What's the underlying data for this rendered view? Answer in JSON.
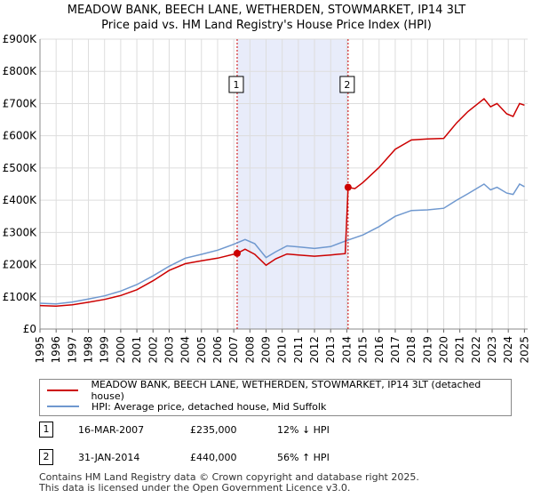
{
  "chart_data": {
    "type": "line",
    "title": "MEADOW BANK, BEECH LANE, WETHERDEN, STOWMARKET, IP14 3LT",
    "subtitle": "Price paid vs. HM Land Registry's House Price Index (HPI)",
    "xlim": [
      1995,
      2025.2
    ],
    "ylim": [
      0,
      900000
    ],
    "x_ticks": [
      "1995",
      "1996",
      "1997",
      "1998",
      "1999",
      "2000",
      "2001",
      "2002",
      "2003",
      "2004",
      "2005",
      "2006",
      "2007",
      "2008",
      "2009",
      "2010",
      "2011",
      "2012",
      "2013",
      "2014",
      "2015",
      "2016",
      "2017",
      "2018",
      "2019",
      "2020",
      "2021",
      "2022",
      "2023",
      "2024",
      "2025"
    ],
    "y_ticks": [
      {
        "value": 0,
        "label": "£0"
      },
      {
        "value": 100000,
        "label": "£100K"
      },
      {
        "value": 200000,
        "label": "£200K"
      },
      {
        "value": 300000,
        "label": "£300K"
      },
      {
        "value": 400000,
        "label": "£400K"
      },
      {
        "value": 500000,
        "label": "£500K"
      },
      {
        "value": 600000,
        "label": "£600K"
      },
      {
        "value": 700000,
        "label": "£700K"
      },
      {
        "value": 800000,
        "label": "£800K"
      },
      {
        "value": 900000,
        "label": "£900K"
      }
    ],
    "grid": true,
    "shaded_span": [
      2007.21,
      2014.08
    ],
    "series": [
      {
        "name": "MEADOW BANK, BEECH LANE, WETHERDEN, STOWMARKET, IP14 3LT (detached house)",
        "color": "#cc0000",
        "points": [
          [
            1995,
            73000
          ],
          [
            1996,
            71000
          ],
          [
            1997,
            75000
          ],
          [
            1998,
            83000
          ],
          [
            1999,
            92000
          ],
          [
            2000,
            104000
          ],
          [
            2001,
            122000
          ],
          [
            2002,
            150000
          ],
          [
            2003,
            182000
          ],
          [
            2004,
            203000
          ],
          [
            2005,
            212000
          ],
          [
            2006,
            220000
          ],
          [
            2007.21,
            235000
          ],
          [
            2007.7,
            248000
          ],
          [
            2008.3,
            232000
          ],
          [
            2009.0,
            198000
          ],
          [
            2009.6,
            218000
          ],
          [
            2010.3,
            233000
          ],
          [
            2011,
            230000
          ],
          [
            2012,
            226000
          ],
          [
            2013,
            230000
          ],
          [
            2013.9,
            234000
          ],
          [
            2014.08,
            440000
          ],
          [
            2014.5,
            436000
          ],
          [
            2015,
            455000
          ],
          [
            2016,
            502000
          ],
          [
            2017,
            558000
          ],
          [
            2018,
            587000
          ],
          [
            2019,
            590000
          ],
          [
            2020,
            592000
          ],
          [
            2020.8,
            640000
          ],
          [
            2021.5,
            675000
          ],
          [
            2022.5,
            715000
          ],
          [
            2022.9,
            690000
          ],
          [
            2023.3,
            700000
          ],
          [
            2023.9,
            668000
          ],
          [
            2024.3,
            660000
          ],
          [
            2024.7,
            700000
          ],
          [
            2025,
            695000
          ]
        ]
      },
      {
        "name": "HPI: Average price, detached house, Mid Suffolk",
        "color": "#6f98cf",
        "points": [
          [
            1995,
            80000
          ],
          [
            1996,
            78000
          ],
          [
            1997,
            84000
          ],
          [
            1998,
            93000
          ],
          [
            1999,
            103000
          ],
          [
            2000,
            118000
          ],
          [
            2001,
            138000
          ],
          [
            2002,
            165000
          ],
          [
            2003,
            195000
          ],
          [
            2004,
            220000
          ],
          [
            2005,
            232000
          ],
          [
            2006,
            245000
          ],
          [
            2007,
            263000
          ],
          [
            2007.7,
            278000
          ],
          [
            2008.3,
            265000
          ],
          [
            2009.0,
            222000
          ],
          [
            2009.6,
            240000
          ],
          [
            2010.3,
            258000
          ],
          [
            2011,
            255000
          ],
          [
            2012,
            250000
          ],
          [
            2013,
            256000
          ],
          [
            2014,
            275000
          ],
          [
            2015,
            292000
          ],
          [
            2016,
            318000
          ],
          [
            2017,
            350000
          ],
          [
            2018,
            368000
          ],
          [
            2019,
            370000
          ],
          [
            2020,
            375000
          ],
          [
            2020.8,
            400000
          ],
          [
            2021.5,
            420000
          ],
          [
            2022.5,
            450000
          ],
          [
            2022.9,
            432000
          ],
          [
            2023.3,
            440000
          ],
          [
            2023.9,
            422000
          ],
          [
            2024.3,
            418000
          ],
          [
            2024.7,
            450000
          ],
          [
            2025,
            442000
          ]
        ]
      }
    ],
    "annotations": [
      {
        "label": "1",
        "x": 2007.21,
        "y": 235000
      },
      {
        "label": "2",
        "x": 2014.08,
        "y": 440000
      }
    ]
  },
  "legend": {
    "entries": [
      {
        "label": "MEADOW BANK, BEECH LANE, WETHERDEN, STOWMARKET, IP14 3LT (detached house)",
        "color": "#cc0000"
      },
      {
        "label": "HPI: Average price, detached house, Mid Suffolk",
        "color": "#6f98cf"
      }
    ]
  },
  "transactions": [
    {
      "marker": "1",
      "date": "16-MAR-2007",
      "price": "£235,000",
      "hpi": "12% ↓ HPI"
    },
    {
      "marker": "2",
      "date": "31-JAN-2014",
      "price": "£440,000",
      "hpi": "56% ↑ HPI"
    }
  ],
  "footer": {
    "line1": "Contains HM Land Registry data © Crown copyright and database right 2025.",
    "line2": "This data is licensed under the Open Government Licence v3.0."
  }
}
